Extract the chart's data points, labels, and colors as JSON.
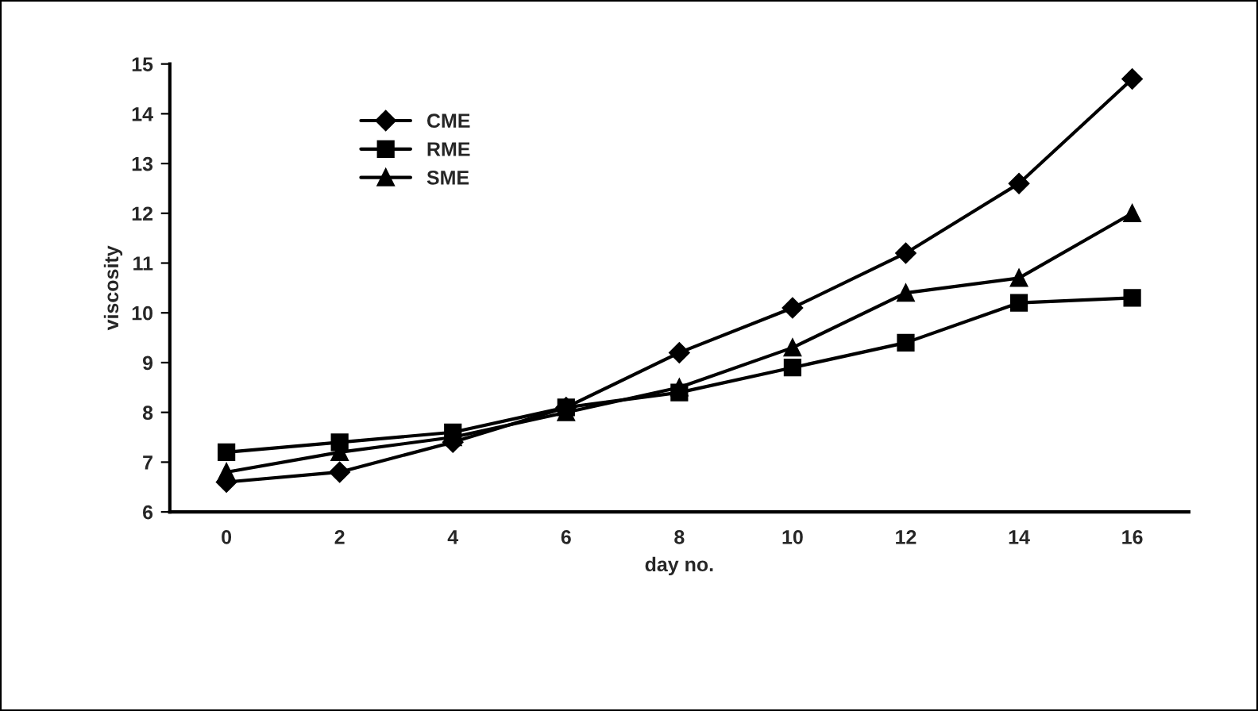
{
  "chart_data": {
    "type": "line",
    "xlabel": "day no.",
    "ylabel": "viscosity",
    "categories": [
      "0",
      "2",
      "4",
      "6",
      "8",
      "10",
      "12",
      "14",
      "16"
    ],
    "series": [
      {
        "name": "CME",
        "color": "#000000",
        "marker": "diamond",
        "values": [
          6.6,
          6.8,
          7.4,
          8.1,
          9.2,
          10.1,
          11.2,
          12.6,
          14.7
        ]
      },
      {
        "name": "RME",
        "color": "#000000",
        "marker": "square",
        "values": [
          7.2,
          7.4,
          7.6,
          8.1,
          8.4,
          8.9,
          9.4,
          10.2,
          10.3
        ]
      },
      {
        "name": "SME",
        "color": "#000000",
        "marker": "triangle",
        "values": [
          6.8,
          7.2,
          7.5,
          8.0,
          8.5,
          9.3,
          10.4,
          10.7,
          12.0
        ]
      }
    ],
    "ylim": [
      6,
      15
    ],
    "yticks": [
      6,
      7,
      8,
      9,
      10,
      11,
      12,
      13,
      14,
      15
    ],
    "grid": false,
    "legend": "top left",
    "line_style": "solid"
  }
}
